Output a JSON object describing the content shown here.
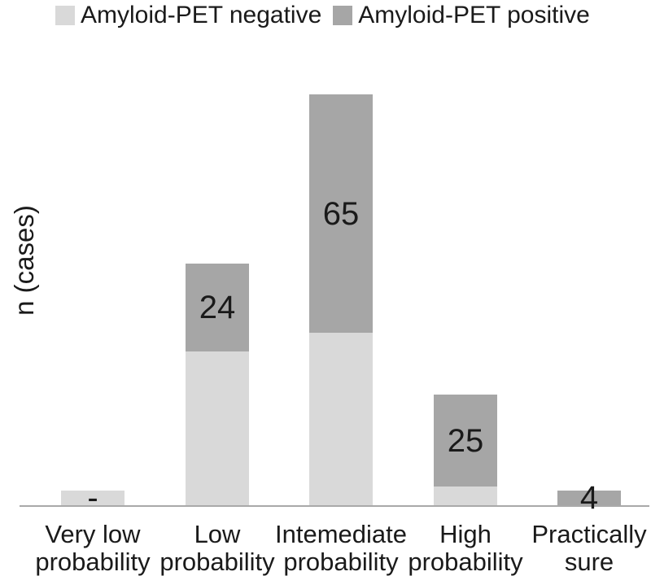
{
  "figure": {
    "background": "#ffffff",
    "text_color": "#1a1a1a"
  },
  "legend": {
    "items": [
      {
        "label": "Amyloid-PET negative",
        "color": "#d9d9d9"
      },
      {
        "label": "Amyloid-PET positive",
        "color": "#a6a6a6"
      }
    ]
  },
  "chart_data": {
    "type": "bar",
    "stacked": true,
    "title": "",
    "xlabel": "",
    "ylabel": "n (cases)",
    "grid": false,
    "y_axis_ticks_visible": false,
    "legend_position": "top",
    "categories": [
      "Very low probability",
      "Low probability",
      "Intemediate probability",
      "High probability",
      "Practically sure"
    ],
    "category_label_lines": [
      [
        "Very low",
        "probability"
      ],
      [
        "Low",
        "probability"
      ],
      [
        "Intemediate",
        "probability"
      ],
      [
        "High",
        "probability"
      ],
      [
        "Practically",
        "sure"
      ]
    ],
    "series": [
      {
        "name": "Amyloid-PET negative",
        "color": "#d9d9d9",
        "values": [
          4,
          42,
          47,
          5,
          0
        ],
        "values_estimated": true
      },
      {
        "name": "Amyloid-PET positive",
        "color": "#a6a6a6",
        "values": [
          0,
          24,
          65,
          25,
          4
        ],
        "values_estimated": false
      }
    ],
    "bar_value_labels": [
      "-",
      "24",
      "65",
      "25",
      "4"
    ],
    "axis_line_color": "#a9a9a9",
    "label_text_color": "#1a1a1a"
  }
}
